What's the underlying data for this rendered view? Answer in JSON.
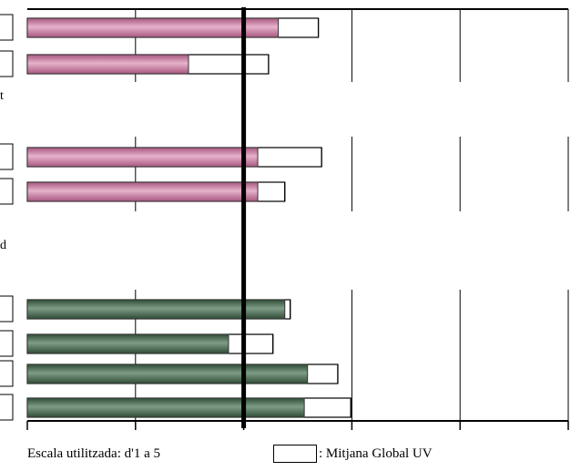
{
  "chart_data": {
    "type": "bar",
    "orientation": "horizontal",
    "xlim": [
      0,
      5
    ],
    "grid": true,
    "reference_line": {
      "x": 2,
      "style": "thick black vertical line"
    },
    "groups": [
      {
        "label": "t",
        "color": "#c87aa0",
        "bars": [
          {
            "value": 2.32,
            "global_mean": 2.69
          },
          {
            "value": 1.49,
            "global_mean": 2.23
          }
        ]
      },
      {
        "label": "d",
        "color": "#c87aa0",
        "bars": [
          {
            "value": 2.13,
            "global_mean": 2.72
          },
          {
            "value": 2.13,
            "global_mean": 2.38
          }
        ]
      },
      {
        "label": "",
        "color": "#4f6e58",
        "bars": [
          {
            "value": 2.38,
            "global_mean": 2.43
          },
          {
            "value": 1.86,
            "global_mean": 2.27
          },
          {
            "value": 2.59,
            "global_mean": 2.87
          },
          {
            "value": 2.56,
            "global_mean": 2.99
          }
        ]
      }
    ],
    "footer_text": "Escala utilitzada: d'1 a 5",
    "legend": {
      "label": ": Mitjana Global UV"
    },
    "colors": {
      "pink": "#c87aa0",
      "green": "#4f6e58",
      "axis": "#000000"
    }
  }
}
